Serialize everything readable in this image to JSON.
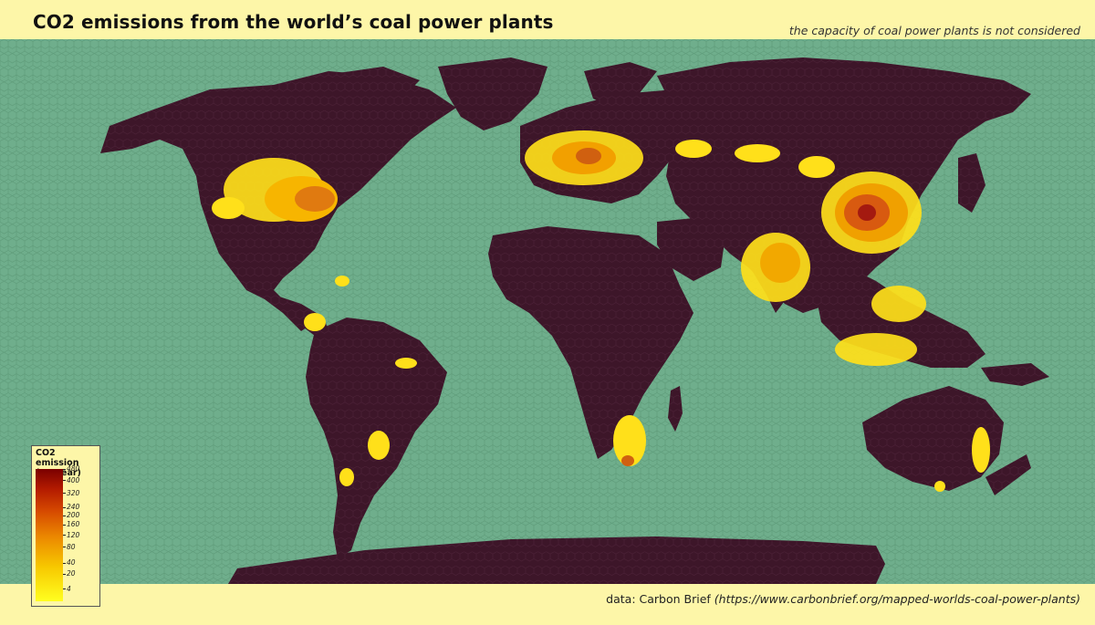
{
  "header": {
    "title": "CO2 emissions from the world’s coal power plants",
    "subtitle": "the capacity of coal power plants is not considered"
  },
  "footer": {
    "source_prefix": "data: Carbon Brief",
    "source_url": "(https://www.carbonbrief.org/mapped-worlds-coal-power-plants)"
  },
  "legend": {
    "title_line1": "CO2 emission",
    "title_line2": "(Mt/year)",
    "ticks": [
      "480",
      "400",
      "320",
      "240",
      "200",
      "160",
      "120",
      "80",
      "40",
      "20",
      "4"
    ],
    "scale_min": 0,
    "scale_max": 480
  },
  "colors": {
    "background": "#fdf6a8",
    "ocean": "#6fae8c",
    "land": "#3d1629",
    "emission_low": "#ffff20",
    "emission_mid": "#ec8a00",
    "emission_high": "#7a0000"
  }
}
